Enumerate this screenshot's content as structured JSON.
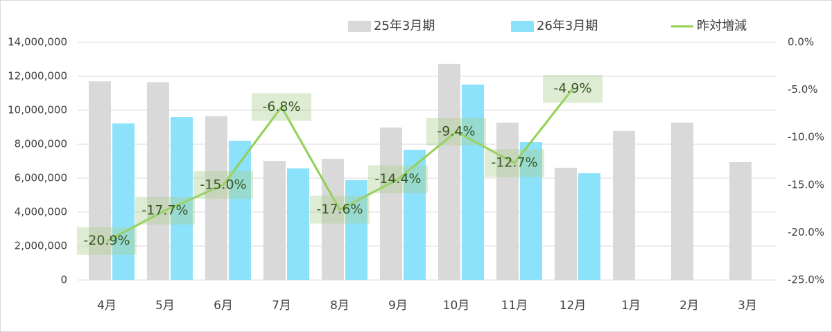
{
  "chart_data": {
    "type": "bar",
    "categories": [
      "4月",
      "5月",
      "6月",
      "7月",
      "8月",
      "9月",
      "10月",
      "11月",
      "12月",
      "1月",
      "2月",
      "3月"
    ],
    "series": [
      {
        "name": "25年3月期",
        "type": "bar",
        "color": "#d9d9d9",
        "values": [
          11700000,
          11650000,
          9650000,
          7020000,
          7140000,
          8980000,
          12730000,
          9270000,
          6610000,
          8780000,
          9270000,
          6940000
        ]
      },
      {
        "name": "26年3月期",
        "type": "bar",
        "color": "#8ce1fb",
        "values": [
          9220000,
          9590000,
          8200000,
          6570000,
          5880000,
          7670000,
          11510000,
          8120000,
          6290000,
          null,
          null,
          null
        ]
      },
      {
        "name": "昨対増減",
        "type": "line",
        "axis": "y2",
        "color": "#92d050",
        "values": [
          -20.9,
          -17.7,
          -15.0,
          -6.8,
          -17.6,
          -14.4,
          -9.4,
          -12.7,
          -4.9,
          null,
          null,
          null
        ],
        "value_labels": [
          "-20.9%",
          "-17.7%",
          "-15.0%",
          "-6.8%",
          "-17.6%",
          "-14.4%",
          "-9.4%",
          "-12.7%",
          "-4.9%",
          null,
          null,
          null
        ]
      }
    ],
    "ylim": [
      0,
      14000000
    ],
    "yticks": [
      0,
      {
        "value": 2000000,
        "label": "2,000,000"
      },
      {
        "value": 4000000,
        "label": "4,000,000"
      },
      {
        "value": 6000000,
        "label": "6,000,000"
      },
      {
        "value": 8000000,
        "label": "8,000,000"
      },
      {
        "value": 10000000,
        "label": "10,000,000"
      },
      {
        "value": 12000000,
        "label": "12,000,000"
      },
      {
        "value": 14000000,
        "label": "14,000,000"
      }
    ],
    "y2lim": [
      -25,
      0
    ],
    "y2ticks": [
      {
        "value": -25,
        "label": "-25.0%"
      },
      {
        "value": -20,
        "label": "-20.0%"
      },
      {
        "value": -15,
        "label": "-15.0%"
      },
      {
        "value": -10,
        "label": "-10.0%"
      },
      {
        "value": -5,
        "label": "-5.0%"
      },
      {
        "value": 0,
        "label": "0.0%"
      }
    ],
    "grid": true,
    "legend": "top"
  }
}
